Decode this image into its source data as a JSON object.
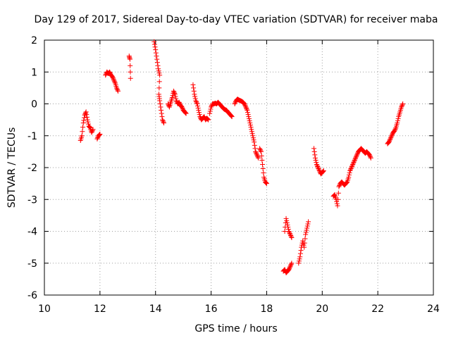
{
  "chart_data": {
    "type": "scatter",
    "title": "Day 129 of 2017, Sidereal Day-to-day VTEC variation (SDTVAR) for receiver maba",
    "xlabel": "GPS time / hours",
    "ylabel": "SDTVAR / TECUs",
    "xlim": [
      10,
      24
    ],
    "ylim": [
      -6,
      2
    ],
    "xticks": [
      "10",
      "12",
      "14",
      "16",
      "18",
      "20",
      "22",
      "24"
    ],
    "yticks": [
      "-6",
      "-5",
      "-4",
      "-3",
      "-2",
      "-1",
      "0",
      "1",
      "2"
    ],
    "grid": true,
    "marker": "+",
    "series_color": "#ff0000",
    "segments": [
      {
        "name": "s1",
        "points": [
          [
            11.3,
            -1.15
          ],
          [
            11.35,
            -1.0
          ],
          [
            11.4,
            -0.6
          ],
          [
            11.45,
            -0.35
          ],
          [
            11.5,
            -0.25
          ],
          [
            11.55,
            -0.5
          ],
          [
            11.6,
            -0.7
          ],
          [
            11.65,
            -0.75
          ],
          [
            11.7,
            -0.9
          ],
          [
            11.75,
            -0.8
          ]
        ]
      },
      {
        "name": "s2",
        "points": [
          [
            11.9,
            -1.1
          ],
          [
            11.95,
            -1.0
          ],
          [
            12.0,
            -0.95
          ]
        ]
      },
      {
        "name": "s3",
        "points": [
          [
            12.2,
            0.9
          ],
          [
            12.25,
            1.0
          ],
          [
            12.3,
            0.95
          ],
          [
            12.35,
            1.0
          ],
          [
            12.4,
            0.9
          ],
          [
            12.45,
            0.85
          ],
          [
            12.5,
            0.75
          ],
          [
            12.55,
            0.65
          ],
          [
            12.6,
            0.5
          ],
          [
            12.65,
            0.4
          ]
        ]
      },
      {
        "name": "s4",
        "points": [
          [
            13.05,
            1.5
          ],
          [
            13.08,
            1.4
          ],
          [
            13.1,
            0.8
          ]
        ]
      },
      {
        "name": "s5",
        "points": [
          [
            13.95,
            1.95
          ],
          [
            14.0,
            1.7
          ],
          [
            14.05,
            1.4
          ],
          [
            14.1,
            1.1
          ],
          [
            14.15,
            0.9
          ],
          [
            14.12,
            0.3
          ],
          [
            14.15,
            0.1
          ],
          [
            14.2,
            -0.2
          ],
          [
            14.25,
            -0.5
          ],
          [
            14.3,
            -0.6
          ]
        ]
      },
      {
        "name": "s6",
        "points": [
          [
            14.45,
            0.0
          ],
          [
            14.5,
            -0.1
          ],
          [
            14.55,
            0.05
          ],
          [
            14.6,
            0.2
          ],
          [
            14.65,
            0.4
          ],
          [
            14.7,
            0.3
          ],
          [
            14.75,
            0.1
          ],
          [
            14.8,
            0.0
          ],
          [
            14.85,
            0.05
          ],
          [
            14.9,
            -0.05
          ],
          [
            14.95,
            -0.1
          ],
          [
            15.0,
            -0.2
          ],
          [
            15.05,
            -0.25
          ],
          [
            15.1,
            -0.3
          ]
        ]
      },
      {
        "name": "s7",
        "points": [
          [
            15.35,
            0.6
          ],
          [
            15.4,
            0.3
          ],
          [
            15.45,
            0.1
          ],
          [
            15.5,
            0.0
          ],
          [
            15.55,
            -0.2
          ],
          [
            15.6,
            -0.4
          ],
          [
            15.65,
            -0.5
          ],
          [
            15.7,
            -0.45
          ],
          [
            15.75,
            -0.4
          ],
          [
            15.8,
            -0.5
          ],
          [
            15.85,
            -0.45
          ],
          [
            15.9,
            -0.5
          ]
        ]
      },
      {
        "name": "s8",
        "points": [
          [
            15.95,
            -0.3
          ],
          [
            16.0,
            -0.1
          ],
          [
            16.05,
            0.0
          ],
          [
            16.1,
            0.0
          ],
          [
            16.15,
            0.02
          ],
          [
            16.2,
            0.0
          ],
          [
            16.25,
            0.05
          ],
          [
            16.3,
            0.0
          ],
          [
            16.35,
            -0.05
          ],
          [
            16.4,
            -0.1
          ],
          [
            16.45,
            -0.15
          ],
          [
            16.5,
            -0.18
          ],
          [
            16.55,
            -0.2
          ],
          [
            16.6,
            -0.25
          ],
          [
            16.65,
            -0.3
          ],
          [
            16.7,
            -0.35
          ],
          [
            16.75,
            -0.4
          ]
        ]
      },
      {
        "name": "s9",
        "points": [
          [
            16.85,
            0.0
          ],
          [
            16.9,
            0.1
          ],
          [
            16.95,
            0.15
          ],
          [
            17.0,
            0.12
          ],
          [
            17.05,
            0.1
          ],
          [
            17.1,
            0.08
          ],
          [
            17.15,
            0.05
          ],
          [
            17.2,
            0.0
          ],
          [
            17.25,
            -0.1
          ],
          [
            17.3,
            -0.2
          ],
          [
            17.35,
            -0.4
          ],
          [
            17.4,
            -0.6
          ],
          [
            17.45,
            -0.8
          ],
          [
            17.5,
            -1.0
          ],
          [
            17.55,
            -1.2
          ],
          [
            17.6,
            -1.5
          ],
          [
            17.65,
            -1.6
          ],
          [
            17.7,
            -1.7
          ]
        ]
      },
      {
        "name": "s10",
        "points": [
          [
            17.75,
            -1.4
          ],
          [
            17.8,
            -1.5
          ],
          [
            17.85,
            -1.9
          ],
          [
            17.9,
            -2.3
          ],
          [
            17.95,
            -2.45
          ],
          [
            18.0,
            -2.5
          ]
        ]
      },
      {
        "name": "s11",
        "points": [
          [
            18.6,
            -5.25
          ],
          [
            18.65,
            -5.2
          ],
          [
            18.7,
            -5.3
          ],
          [
            18.75,
            -5.25
          ],
          [
            18.8,
            -5.2
          ],
          [
            18.85,
            -5.1
          ],
          [
            18.9,
            -5.0
          ],
          [
            18.65,
            -4.0
          ],
          [
            18.7,
            -3.6
          ],
          [
            18.75,
            -3.8
          ],
          [
            18.8,
            -4.0
          ],
          [
            18.85,
            -4.1
          ],
          [
            18.9,
            -4.2
          ]
        ]
      },
      {
        "name": "s12",
        "points": [
          [
            19.15,
            -5.0
          ],
          [
            19.2,
            -4.8
          ],
          [
            19.25,
            -4.5
          ],
          [
            19.3,
            -4.3
          ],
          [
            19.35,
            -4.5
          ],
          [
            19.4,
            -4.1
          ],
          [
            19.45,
            -3.9
          ],
          [
            19.5,
            -3.7
          ]
        ]
      },
      {
        "name": "s13",
        "points": [
          [
            19.7,
            -1.4
          ],
          [
            19.75,
            -1.7
          ],
          [
            19.8,
            -1.9
          ],
          [
            19.85,
            -2.0
          ],
          [
            19.9,
            -2.1
          ],
          [
            19.95,
            -2.2
          ],
          [
            20.0,
            -2.15
          ],
          [
            20.05,
            -2.1
          ]
        ]
      },
      {
        "name": "s14",
        "points": [
          [
            20.4,
            -2.9
          ],
          [
            20.45,
            -2.85
          ],
          [
            20.5,
            -3.0
          ],
          [
            20.55,
            -3.2
          ],
          [
            20.6,
            -2.6
          ],
          [
            20.65,
            -2.5
          ],
          [
            20.7,
            -2.45
          ],
          [
            20.75,
            -2.5
          ],
          [
            20.8,
            -2.55
          ],
          [
            20.85,
            -2.5
          ],
          [
            20.9,
            -2.45
          ],
          [
            20.95,
            -2.3
          ],
          [
            21.0,
            -2.1
          ],
          [
            21.05,
            -2.0
          ],
          [
            21.1,
            -1.9
          ],
          [
            21.15,
            -1.8
          ],
          [
            21.2,
            -1.7
          ],
          [
            21.25,
            -1.6
          ],
          [
            21.3,
            -1.5
          ],
          [
            21.35,
            -1.45
          ],
          [
            21.4,
            -1.4
          ],
          [
            21.45,
            -1.45
          ],
          [
            21.5,
            -1.5
          ],
          [
            21.55,
            -1.55
          ],
          [
            21.6,
            -1.5
          ],
          [
            21.65,
            -1.55
          ],
          [
            21.7,
            -1.6
          ],
          [
            21.75,
            -1.7
          ]
        ]
      },
      {
        "name": "s15",
        "points": [
          [
            22.35,
            -1.25
          ],
          [
            22.4,
            -1.2
          ],
          [
            22.45,
            -1.1
          ],
          [
            22.5,
            -1.0
          ],
          [
            22.55,
            -0.9
          ],
          [
            22.6,
            -0.85
          ],
          [
            22.65,
            -0.75
          ],
          [
            22.7,
            -0.6
          ],
          [
            22.75,
            -0.4
          ],
          [
            22.8,
            -0.25
          ],
          [
            22.85,
            -0.1
          ],
          [
            22.9,
            0.0
          ]
        ]
      }
    ]
  }
}
